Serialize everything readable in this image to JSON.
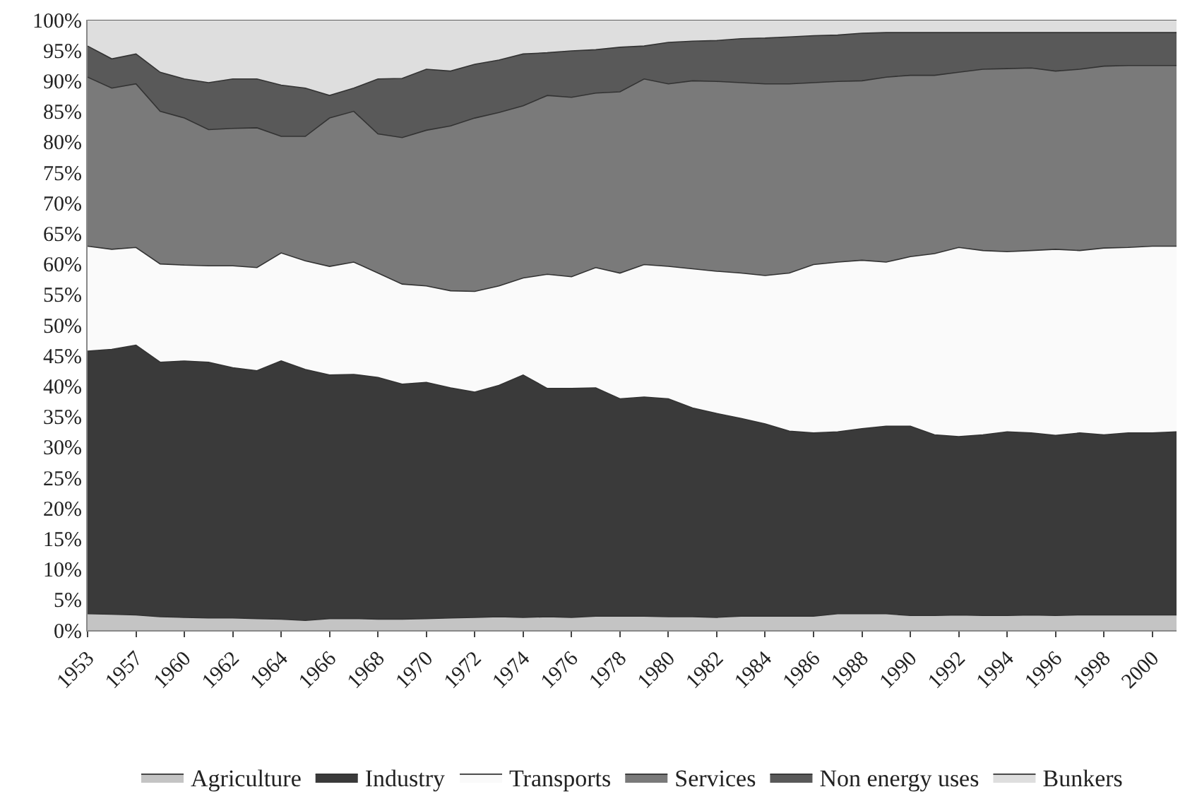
{
  "chart_data": {
    "type": "area",
    "stacked": true,
    "legend": "bottom",
    "categories": [
      "1953",
      null,
      "1957",
      null,
      "1960",
      null,
      "1962",
      null,
      "1964",
      null,
      "1966",
      null,
      "1968",
      null,
      "1970",
      null,
      "1972",
      null,
      "1974",
      null,
      "1976",
      null,
      "1978",
      null,
      "1980",
      null,
      "1982",
      null,
      "1984",
      null,
      "1986",
      null,
      "1988",
      null,
      "1990",
      null,
      "1992",
      null,
      "1994",
      null,
      "1996",
      null,
      "1998",
      null,
      "2000",
      null
    ],
    "ylim": [
      0,
      100
    ],
    "yticks": [
      {
        "value": 0,
        "label": "0%"
      },
      {
        "value": 5,
        "label": "5%"
      },
      {
        "value": 10,
        "label": "10%"
      },
      {
        "value": 15,
        "label": "15%"
      },
      {
        "value": 20,
        "label": "20%"
      },
      {
        "value": 25,
        "label": "25%"
      },
      {
        "value": 30,
        "label": "30%"
      },
      {
        "value": 35,
        "label": "35%"
      },
      {
        "value": 40,
        "label": "40%"
      },
      {
        "value": 45,
        "label": "45%"
      },
      {
        "value": 50,
        "label": "50%"
      },
      {
        "value": 55,
        "label": "55%"
      },
      {
        "value": 60,
        "label": "60%"
      },
      {
        "value": 65,
        "label": "65%"
      },
      {
        "value": 70,
        "label": "70%"
      },
      {
        "value": 75,
        "label": "75%"
      },
      {
        "value": 80,
        "label": "80%"
      },
      {
        "value": 85,
        "label": "85%"
      },
      {
        "value": 90,
        "label": "90%"
      },
      {
        "value": 95,
        "label": "95%"
      },
      {
        "value": 100,
        "label": "100%"
      }
    ],
    "series": [
      {
        "name": "Agriculture",
        "color": "#c4c4c4",
        "values": [
          2.7,
          2.6,
          2.5,
          2.2,
          2.1,
          2.0,
          2.0,
          1.9,
          1.8,
          1.6,
          1.9,
          1.9,
          1.8,
          1.8,
          1.9,
          2.0,
          2.1,
          2.2,
          2.1,
          2.2,
          2.1,
          2.3,
          2.3,
          2.3,
          2.2,
          2.2,
          2.1,
          2.3,
          2.3,
          2.3,
          2.3,
          2.7,
          2.7,
          2.7,
          2.4,
          2.4,
          2.5,
          2.4,
          2.4,
          2.5,
          2.4,
          2.5,
          2.5,
          2.5,
          2.5,
          2.5
        ]
      },
      {
        "name": "Industry",
        "color": "#3a3a3a",
        "values": [
          43.0,
          43.4,
          44.2,
          41.7,
          42.0,
          41.9,
          41.0,
          40.6,
          42.3,
          41.1,
          39.9,
          40.0,
          39.6,
          38.5,
          38.7,
          37.7,
          36.9,
          37.9,
          39.7,
          37.4,
          37.5,
          37.4,
          35.6,
          35.9,
          35.7,
          34.2,
          33.4,
          32.4,
          31.5,
          30.3,
          30.0,
          29.8,
          30.3,
          30.7,
          31.0,
          29.6,
          29.2,
          29.6,
          30.1,
          29.8,
          29.5,
          29.8,
          29.5,
          29.8,
          29.8,
          30.0
        ]
      },
      {
        "name": "Transports",
        "color": "#fafafa",
        "values": [
          17.2,
          16.4,
          16.0,
          16.1,
          15.7,
          15.8,
          16.7,
          16.9,
          17.7,
          17.8,
          17.8,
          18.4,
          17.1,
          16.4,
          15.8,
          15.9,
          16.5,
          16.3,
          15.9,
          18.7,
          18.3,
          19.7,
          20.6,
          21.7,
          21.7,
          22.8,
          23.3,
          23.8,
          24.3,
          25.9,
          27.6,
          27.8,
          27.6,
          26.9,
          27.8,
          29.7,
          31.0,
          30.2,
          29.5,
          29.9,
          30.5,
          29.9,
          30.6,
          30.4,
          30.6,
          30.4
        ]
      },
      {
        "name": "Services",
        "color": "#7a7a7a",
        "values": [
          27.7,
          26.4,
          26.8,
          25.0,
          24.1,
          22.3,
          22.5,
          22.9,
          19.1,
          20.4,
          24.3,
          24.7,
          22.8,
          24.0,
          25.5,
          27.0,
          28.4,
          28.4,
          28.2,
          29.3,
          29.4,
          28.6,
          29.7,
          30.4,
          29.9,
          30.8,
          31.1,
          31.2,
          31.4,
          31.0,
          29.8,
          29.6,
          29.4,
          30.3,
          29.7,
          29.2,
          28.7,
          29.7,
          30.0,
          29.9,
          29.2,
          29.7,
          29.8,
          29.8,
          29.6,
          29.6
        ]
      },
      {
        "name": "Non energy uses",
        "color": "#595959",
        "values": [
          5.1,
          4.8,
          4.9,
          6.4,
          6.4,
          7.7,
          8.1,
          8.0,
          8.4,
          7.9,
          3.7,
          3.8,
          9.0,
          9.7,
          10.0,
          9.0,
          8.8,
          8.6,
          8.5,
          7.0,
          7.6,
          7.1,
          7.3,
          5.4,
          6.8,
          6.5,
          6.7,
          7.2,
          7.5,
          7.7,
          7.7,
          7.6,
          7.8,
          7.3,
          7.0,
          7.0,
          6.5,
          6.0,
          5.9,
          5.8,
          6.3,
          6.0,
          5.5,
          5.4,
          5.4,
          5.4
        ]
      },
      {
        "name": "Bunkers",
        "color": "#dedede",
        "values": [
          4.3,
          6.4,
          5.6,
          8.6,
          9.7,
          10.3,
          9.7,
          9.7,
          10.7,
          11.2,
          12.4,
          11.2,
          9.7,
          9.6,
          8.1,
          8.4,
          7.3,
          6.6,
          5.6,
          5.4,
          5.1,
          4.9,
          4.5,
          4.3,
          3.7,
          3.5,
          3.4,
          3.1,
          3.0,
          2.8,
          2.6,
          2.5,
          2.2,
          2.1,
          2.1,
          2.1,
          2.1,
          2.1,
          2.1,
          2.1,
          2.1,
          2.1,
          2.1,
          2.1,
          2.1,
          2.1
        ]
      }
    ]
  }
}
